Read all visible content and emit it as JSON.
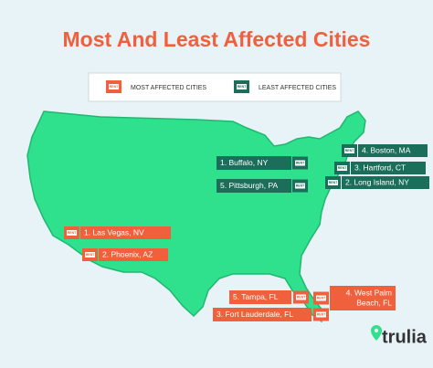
{
  "title": "Most And Least Affected Cities",
  "legend": {
    "most": "MOST AFFECTED CITIES",
    "least": "LEAST AFFECTED CITIES"
  },
  "icon_label": "RENT",
  "most_affected": [
    {
      "lines": [
        "1. Las Vegas, NV"
      ]
    },
    {
      "lines": [
        "2. Phoenix, AZ"
      ]
    },
    {
      "lines": [
        "3. Fort Lauderdale, FL"
      ]
    },
    {
      "lines": [
        "4. West Palm",
        "Beach, FL"
      ]
    },
    {
      "lines": [
        "5. Tampa, FL"
      ]
    }
  ],
  "least_affected": [
    {
      "lines": [
        "1. Buffalo, NY"
      ]
    },
    {
      "lines": [
        "2. Long Island, NY"
      ]
    },
    {
      "lines": [
        "3. Hartford, CT"
      ]
    },
    {
      "lines": [
        "4. Boston, MA"
      ]
    },
    {
      "lines": [
        "5. Pittsburgh, PA"
      ]
    }
  ],
  "logo": "trulia"
}
